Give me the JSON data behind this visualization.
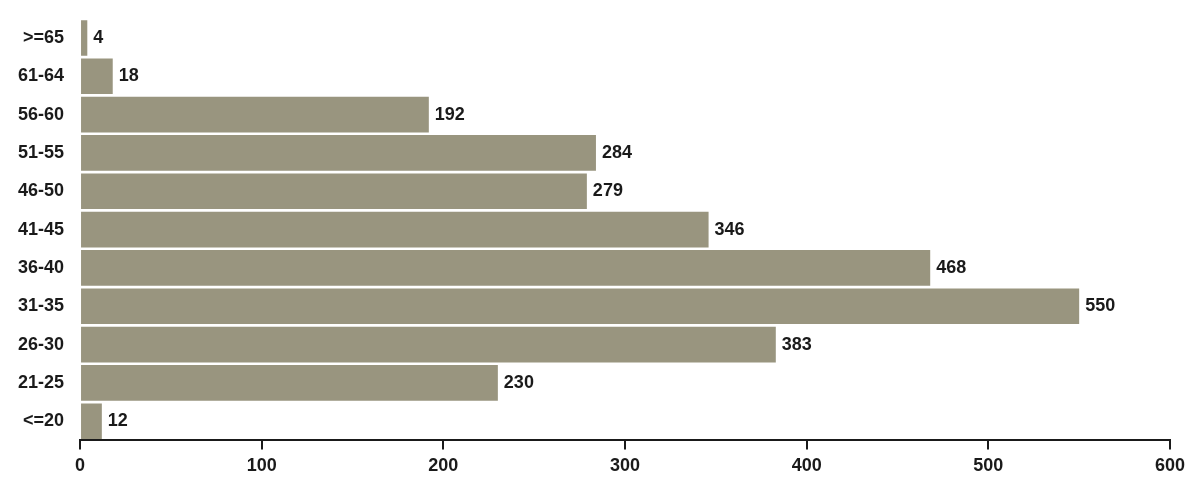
{
  "chart_data": {
    "type": "bar",
    "orientation": "horizontal",
    "categories": [
      ">=65",
      "61-64",
      "56-60",
      "51-55",
      "46-50",
      "41-45",
      "36-40",
      "31-35",
      "26-30",
      "21-25",
      "<=20"
    ],
    "values": [
      4,
      18,
      192,
      284,
      279,
      346,
      468,
      550,
      383,
      230,
      12
    ],
    "color": "#99957f",
    "xlim": [
      0,
      600
    ],
    "xticks": [
      0,
      100,
      200,
      300,
      400,
      500,
      600
    ],
    "data_labels": true,
    "grid": false,
    "legend": false
  }
}
